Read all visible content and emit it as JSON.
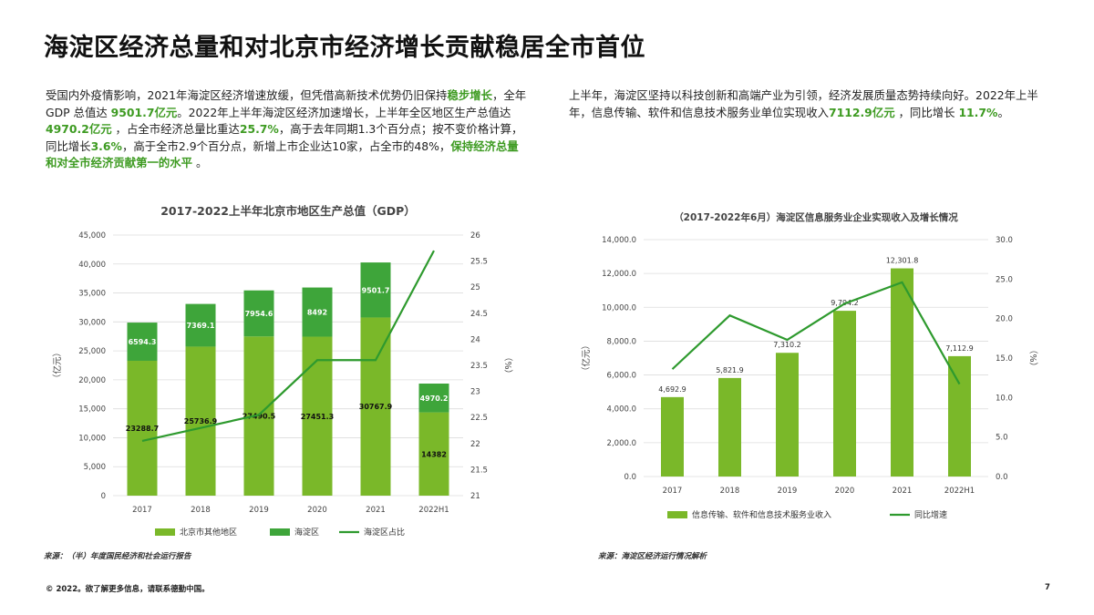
{
  "title": "海淀区经济总量和对北京市经济增长贡献稳居全市首位",
  "para_left": [
    {
      "t": "受国内外疫情影响，2021年海淀区经济增速放缓，但凭借高新技术优势仍旧保持",
      "g": false
    },
    {
      "t": "稳步增长",
      "g": true
    },
    {
      "t": "，全年 GDP 总值达 ",
      "g": false
    },
    {
      "t": "9501.7亿元",
      "g": true
    },
    {
      "t": "。2022年上半年海淀区经济加速增长，上半年全区地区生产总值达",
      "g": false
    },
    {
      "t": "4970.2亿元",
      "g": true
    },
    {
      "t": " ，占全市经济总量比重达",
      "g": false
    },
    {
      "t": "25.7%",
      "g": true
    },
    {
      "t": "，高于去年同期1.3个百分点；按不变价格计算，同比增长",
      "g": false
    },
    {
      "t": "3.6%",
      "g": true
    },
    {
      "t": "，高于全市2.9个百分点，新增上市企业达10家，占全市的48%，",
      "g": false
    },
    {
      "t": "保持经济总量和对全市经济贡献第一的水平",
      "g": true
    },
    {
      "t": " 。",
      "g": false
    }
  ],
  "para_right": [
    {
      "t": "上半年，海淀区坚持以科技创新和高端产业为引领，经济发展质量态势持续向好。2022年上半年，信息传输、软件和信息技术服务业单位实现收入",
      "g": false
    },
    {
      "t": "7112.9亿元",
      "g": true
    },
    {
      "t": " ，同比增长 ",
      "g": false
    },
    {
      "t": "11.7%",
      "g": true
    },
    {
      "t": "。",
      "g": false
    }
  ],
  "colors": {
    "light_green": "#7ab829",
    "dark_green": "#3ea53a",
    "line_green": "#2e9a2e",
    "highlight_green": "#3e9b22"
  },
  "chart_data": [
    {
      "type": "bar",
      "stacked": true,
      "title": "2017-2022上半年北京市地区生产总值（GDP）",
      "categories": [
        "2017",
        "2018",
        "2019",
        "2020",
        "2021",
        "2022H1"
      ],
      "series": [
        {
          "name": "北京市其他地区",
          "kind": "bar",
          "axis": "left",
          "values": [
            23288.7,
            25736.9,
            27490.5,
            27451.3,
            30767.9,
            14382
          ],
          "labels": [
            "23288.7",
            "25736.9",
            "27490.5",
            "27451.3",
            "30767.9",
            "14382"
          ]
        },
        {
          "name": "海淀区",
          "kind": "bar",
          "axis": "left",
          "values": [
            6594.3,
            7369.1,
            7954.6,
            8492,
            9501.7,
            4970.2
          ],
          "labels": [
            "6594.3",
            "7369.1",
            "7954.6",
            "8492",
            "9501.7",
            "4970.2"
          ]
        },
        {
          "name": "海淀区占比",
          "kind": "line",
          "axis": "right",
          "values": [
            22.05,
            22.3,
            22.55,
            23.6,
            23.6,
            25.7
          ]
        }
      ],
      "ylabel": "（亿元）",
      "y2label": "（%）",
      "ylim": [
        0,
        45000
      ],
      "y2lim": [
        21,
        26
      ],
      "yticks": [
        "0",
        "5,000",
        "10,000",
        "15,000",
        "20,000",
        "25,000",
        "30,000",
        "35,000",
        "40,000",
        "45,000"
      ],
      "y2ticks": [
        "21",
        "21.5",
        "22",
        "22.5",
        "23",
        "23.5",
        "24",
        "24.5",
        "25",
        "25.5",
        "26"
      ],
      "grid": true,
      "legend_position": "bottom",
      "source": "来源：（半）年度国民经济和社会运行报告"
    },
    {
      "type": "bar",
      "title": "（2017-2022年6月）海淀区信息服务业企业实现收入及增长情况",
      "categories": [
        "2017",
        "2018",
        "2019",
        "2020",
        "2021",
        "2022H1"
      ],
      "series": [
        {
          "name": "信息传输、软件和信息技术服务业收入",
          "kind": "bar",
          "axis": "left",
          "values": [
            4692.9,
            5821.9,
            7310.2,
            9794.2,
            12301.8,
            7112.9
          ],
          "labels": [
            "4,692.9",
            "5,821.9",
            "7,310.2",
            "9,794.2",
            "12,301.8",
            "7,112.9"
          ]
        },
        {
          "name": "同比增速",
          "kind": "line",
          "axis": "right",
          "values": [
            13.6,
            20.4,
            17.3,
            21.9,
            24.6,
            11.7
          ]
        }
      ],
      "ylabel": "（亿元）",
      "y2label": "（%）",
      "ylim": [
        0,
        14000
      ],
      "y2lim": [
        0,
        30
      ],
      "yticks": [
        "0.0",
        "2,000.0",
        "4,000.0",
        "6,000.0",
        "8,000.0",
        "10,000.0",
        "12,000.0",
        "14,000.0"
      ],
      "y2ticks": [
        "0.0",
        "5.0",
        "10.0",
        "15.0",
        "20.0",
        "25.0",
        "30.0"
      ],
      "grid": true,
      "legend_position": "bottom",
      "source": "来源：海淀区经济运行情况解析"
    }
  ],
  "footer": "© 2022。欲了解更多信息，请联系德勤中国。",
  "page_number": "7"
}
